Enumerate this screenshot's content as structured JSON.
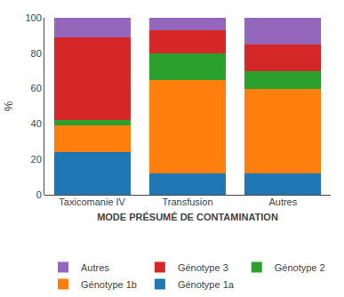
{
  "chart_data": {
    "type": "bar",
    "stacked": true,
    "categories": [
      "Taxicomanie IV",
      "Transfusion",
      "Autres"
    ],
    "series": [
      {
        "name": "Génotype 1a",
        "values": [
          24,
          12,
          12
        ]
      },
      {
        "name": "Génotype 1b",
        "values": [
          15,
          53,
          48
        ]
      },
      {
        "name": "Génotype 2",
        "values": [
          3,
          15,
          10
        ]
      },
      {
        "name": "Génotype 3",
        "values": [
          47,
          13,
          15
        ]
      },
      {
        "name": "Autres",
        "values": [
          11,
          7,
          15
        ]
      }
    ],
    "xlabel": "MODE PRÉSUMÉ DE CONTAMINATION",
    "ylabel": "%",
    "ylim": [
      0,
      100
    ],
    "yticks": [
      0,
      20,
      40,
      60,
      80,
      100
    ],
    "grid": false,
    "legend": "bottom"
  }
}
